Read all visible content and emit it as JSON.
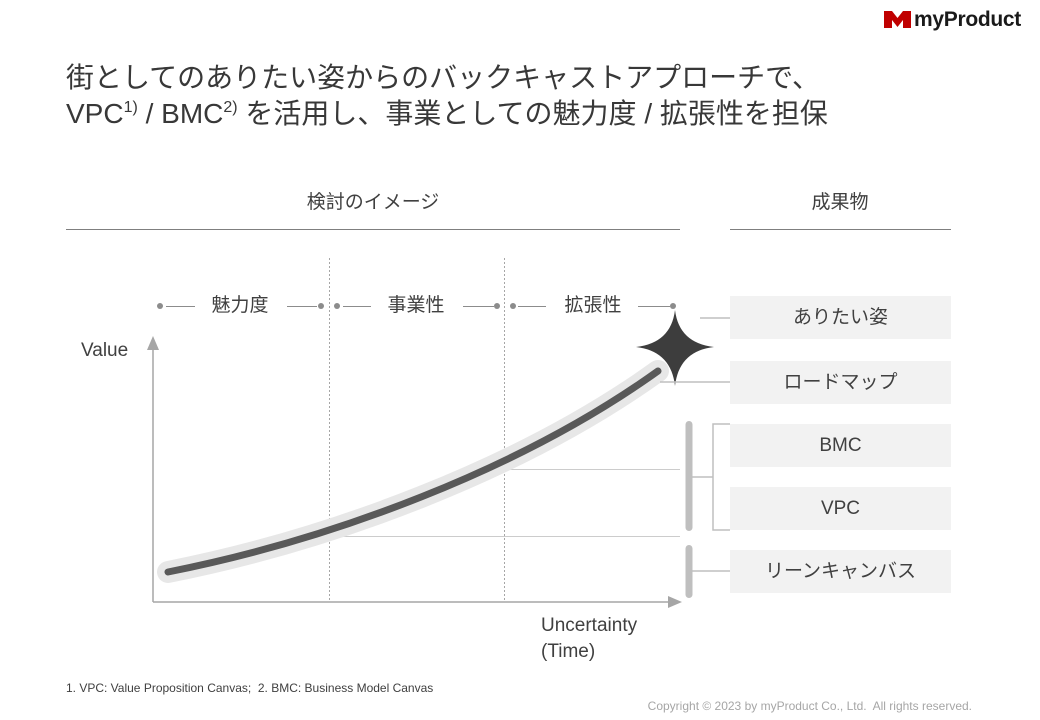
{
  "logo": {
    "name": "myProduct"
  },
  "title": {
    "line1": "街としてのありたい姿からのバックキャストアプローチで、",
    "line2_vpc": "VPC",
    "line2_sup1": "1)",
    "line2_mid": " / BMC",
    "line2_sup2": "2)",
    "line2_rest": " を活用し、事業としての魅力度 / 拡張性を担保"
  },
  "sections": {
    "study": "検討のイメージ",
    "deliverables": "成果物"
  },
  "phases": [
    "魅力度",
    "事業性",
    "拡張性"
  ],
  "axes": {
    "y_label": "Value",
    "x_label_line1": "Uncertainty",
    "x_label_line2": "(Time)"
  },
  "deliverables": [
    "ありたい姿",
    "ロードマップ",
    "BMC",
    "VPC",
    "リーンキャンバス"
  ],
  "footnote": "1. VPC: Value Proposition Canvas;  2. BMC: Business Model Canvas",
  "copyright": "Copyright © 2023 by myProduct Co., Ltd.  All rights reserved.",
  "icons": {
    "logo": "logo-mark-icon",
    "milestone": "sparkle-star-icon"
  },
  "colors": {
    "text": "#404040",
    "title": "#383838",
    "logo_red": "#c00000",
    "logo_text": "#1a1a1a",
    "curve": "#595959",
    "curve_glow": "#e7e7e7",
    "star": "#3d3d3d",
    "box_fill": "#f2f2f2",
    "rule": "#7f7f7f",
    "axis": "#a6a6a6",
    "guide": "#cccccc",
    "connector": "#bfbfbf",
    "copyright": "#a6a6a6",
    "dot": "#8c8c8c"
  }
}
